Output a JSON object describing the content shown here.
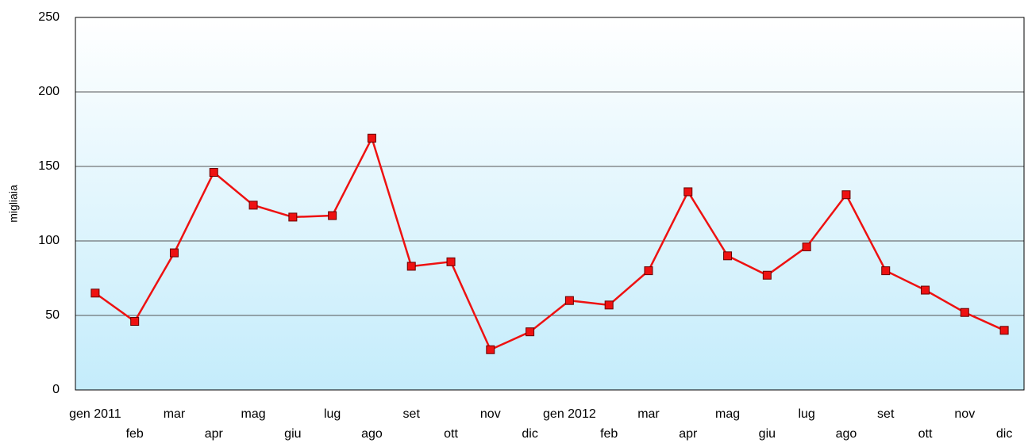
{
  "chart_data": {
    "type": "line",
    "y_label": "migliaia",
    "categories": [
      "gen 2011",
      "feb",
      "mar",
      "apr",
      "mag",
      "giu",
      "lug",
      "ago",
      "set",
      "ott",
      "nov",
      "dic",
      "gen 2012",
      "feb",
      "mar",
      "apr",
      "mag",
      "giu",
      "lug",
      "ago",
      "set",
      "ott",
      "nov",
      "dic"
    ],
    "series": [
      {
        "color": "#ee1111",
        "values": [
          65,
          46,
          92,
          146,
          124,
          116,
          117,
          169,
          83,
          86,
          27,
          39,
          60,
          57,
          80,
          133,
          90,
          77,
          96,
          131,
          80,
          67,
          52,
          40
        ]
      }
    ],
    "ylim": [
      0,
      250
    ],
    "yticks": [
      0,
      50,
      100,
      150,
      200,
      250
    ],
    "grid": true
  }
}
